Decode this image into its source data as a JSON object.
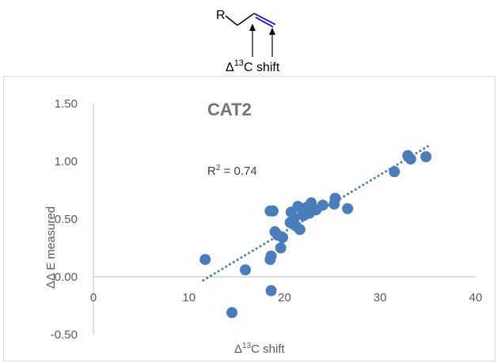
{
  "scheme": {
    "r_label": "R",
    "delta": "Δ",
    "isotope": "13",
    "shift_label": "C shift",
    "bond_color": "#0000ff"
  },
  "chart_data": {
    "type": "scatter",
    "title": "CAT2",
    "xlabel_delta": "Δ",
    "xlabel_sup": "13",
    "xlabel_rest": "C shift",
    "ylabel": "ΔΔ E measured",
    "xlim": [
      0,
      40
    ],
    "ylim": [
      -0.5,
      1.5
    ],
    "x_ticks": [
      0,
      10,
      20,
      30,
      40
    ],
    "y_ticks": [
      1.5,
      1.0,
      0.5,
      0.0,
      -0.5
    ],
    "y_tick_labels": [
      "1.50",
      "1.00",
      "0.50",
      "0.00",
      "-0.50"
    ],
    "grid": false,
    "marker_color": "#4a7ebb",
    "trendline": {
      "type": "linear",
      "x_start": 11.5,
      "y_start": -0.03,
      "x_end": 35.0,
      "y_end": 1.13,
      "color": "#4a7ebb",
      "style": "dotted"
    },
    "r2_base": "R",
    "r2_sup": "2",
    "r2_value": " = 0.74",
    "points": [
      {
        "x": 11.7,
        "y": 0.15
      },
      {
        "x": 14.5,
        "y": -0.31
      },
      {
        "x": 15.9,
        "y": 0.06
      },
      {
        "x": 18.5,
        "y": 0.57
      },
      {
        "x": 18.8,
        "y": 0.57
      },
      {
        "x": 18.5,
        "y": 0.15
      },
      {
        "x": 18.6,
        "y": 0.18
      },
      {
        "x": 18.6,
        "y": -0.12
      },
      {
        "x": 19.0,
        "y": 0.39
      },
      {
        "x": 19.3,
        "y": 0.36
      },
      {
        "x": 19.8,
        "y": 0.34
      },
      {
        "x": 19.6,
        "y": 0.25
      },
      {
        "x": 20.6,
        "y": 0.47
      },
      {
        "x": 20.7,
        "y": 0.56
      },
      {
        "x": 21.0,
        "y": 0.51
      },
      {
        "x": 21.2,
        "y": 0.44
      },
      {
        "x": 21.4,
        "y": 0.61
      },
      {
        "x": 21.6,
        "y": 0.41
      },
      {
        "x": 21.9,
        "y": 0.57
      },
      {
        "x": 22.0,
        "y": 0.53
      },
      {
        "x": 22.3,
        "y": 0.6
      },
      {
        "x": 22.6,
        "y": 0.55
      },
      {
        "x": 22.8,
        "y": 0.64
      },
      {
        "x": 23.3,
        "y": 0.58
      },
      {
        "x": 24.0,
        "y": 0.62
      },
      {
        "x": 25.2,
        "y": 0.63
      },
      {
        "x": 25.3,
        "y": 0.68
      },
      {
        "x": 26.6,
        "y": 0.59
      },
      {
        "x": 31.5,
        "y": 0.91
      },
      {
        "x": 32.9,
        "y": 1.05
      },
      {
        "x": 33.2,
        "y": 1.02
      },
      {
        "x": 34.8,
        "y": 1.04
      }
    ]
  }
}
